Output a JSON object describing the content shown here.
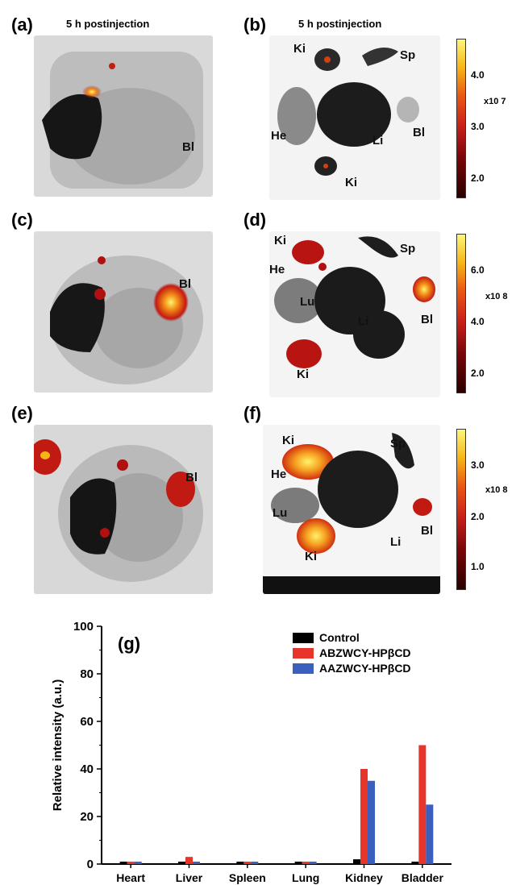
{
  "panels": {
    "a": {
      "label": "(a)",
      "title": "5 h postinjection",
      "organs": [
        "Bl"
      ]
    },
    "b": {
      "label": "(b)",
      "title": "5 h postinjection",
      "organs": [
        "Ki",
        "Sp",
        "He",
        "Li",
        "Bl",
        "Ki"
      ],
      "colorbar": {
        "ticks": [
          "4.0",
          "3.0",
          "2.0"
        ],
        "exponent": "x10 7"
      }
    },
    "c": {
      "label": "(c)",
      "organs": [
        "Bl"
      ]
    },
    "d": {
      "label": "(d)",
      "organs": [
        "Ki",
        "Sp",
        "He",
        "Lu",
        "Li",
        "Bl",
        "Ki"
      ],
      "colorbar": {
        "ticks": [
          "6.0",
          "4.0",
          "2.0"
        ],
        "exponent": "x10 8"
      }
    },
    "e": {
      "label": "(e)",
      "organs": [
        "Bl"
      ]
    },
    "f": {
      "label": "(f)",
      "organs": [
        "Ki",
        "Sp",
        "He",
        "Lu",
        "Ki",
        "Li",
        "Bl"
      ],
      "colorbar": {
        "ticks": [
          "3.0",
          "2.0",
          "1.0"
        ],
        "exponent": "x10 8"
      }
    },
    "g": {
      "label": "(g)"
    }
  },
  "colors": {
    "control": "#000000",
    "abzwcy": "#e8352c",
    "aazwcy": "#3b5fbf"
  },
  "chart_data": {
    "type": "bar",
    "title": "",
    "xlabel": "",
    "ylabel": "Relative intensity (a.u.)",
    "ylim": [
      0,
      100
    ],
    "yticks": [
      0,
      20,
      40,
      60,
      80,
      100
    ],
    "categories": [
      "Heart",
      "Liver",
      "Spleen",
      "Lung",
      "Kidney",
      "Bladder"
    ],
    "series": [
      {
        "name": "Control",
        "color": "#000000",
        "values": [
          1,
          1,
          1,
          1,
          2,
          1
        ]
      },
      {
        "name": "ABZWCY-HPβCD",
        "color": "#e8352c",
        "values": [
          1,
          3,
          1,
          1,
          40,
          50
        ]
      },
      {
        "name": "AAZWCY-HPβCD",
        "color": "#3b5fbf",
        "values": [
          1,
          1,
          1,
          1,
          35,
          25
        ]
      }
    ],
    "legend": "top-right",
    "grid": false
  }
}
